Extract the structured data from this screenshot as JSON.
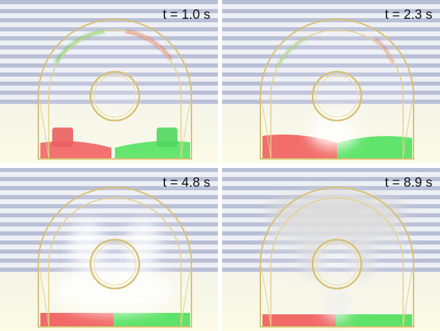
{
  "panels": [
    {
      "label": "t = 1.0 s"
    },
    {
      "label": "t = 2.3 s"
    },
    {
      "label": "t = 4.8 s"
    },
    {
      "label": "t = 8.9 s"
    }
  ]
}
